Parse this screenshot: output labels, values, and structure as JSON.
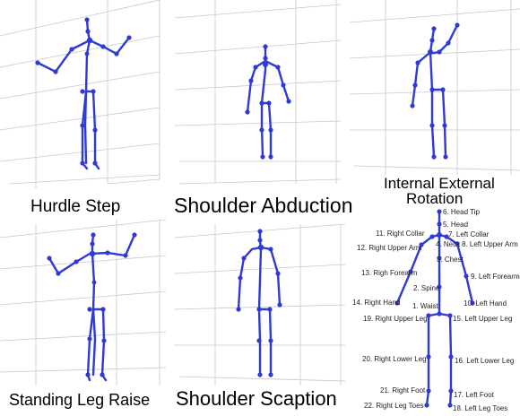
{
  "panels": [
    {
      "id": "hurdle",
      "caption": "Hurdle Step"
    },
    {
      "id": "abduction",
      "caption": "Shoulder Abduction"
    },
    {
      "id": "rotation",
      "caption_line1": "Internal External",
      "caption_line2": "Rotation"
    },
    {
      "id": "legraise",
      "caption": "Standing Leg Raise"
    },
    {
      "id": "scaption",
      "caption": "Shoulder  Scaption"
    }
  ],
  "joints": [
    "6. Head Tip",
    "5. Head",
    "11. Right Collar",
    "7. Left Collar",
    "12. Right Upper Arm",
    "4. Neck",
    "8. Left Upper Arm",
    "3. Chest",
    "13. Righ Forearm",
    "9. Left Forearm",
    "2. Spine",
    "14. Right Hand",
    "10. Left Hand",
    "1. Waist",
    "19. Right Upper Leg",
    "15. Left Upper Leg",
    "20. Right Lower Leg",
    "16. Left Lower Leg",
    "21. Right Foot",
    "17. Left Foot",
    "22. Right Leg Toes",
    "18. Left Leg Toes"
  ],
  "colors": {
    "skeleton": "#2f3ad6",
    "grid": "#c8c8c8",
    "background": "#ffffff"
  }
}
